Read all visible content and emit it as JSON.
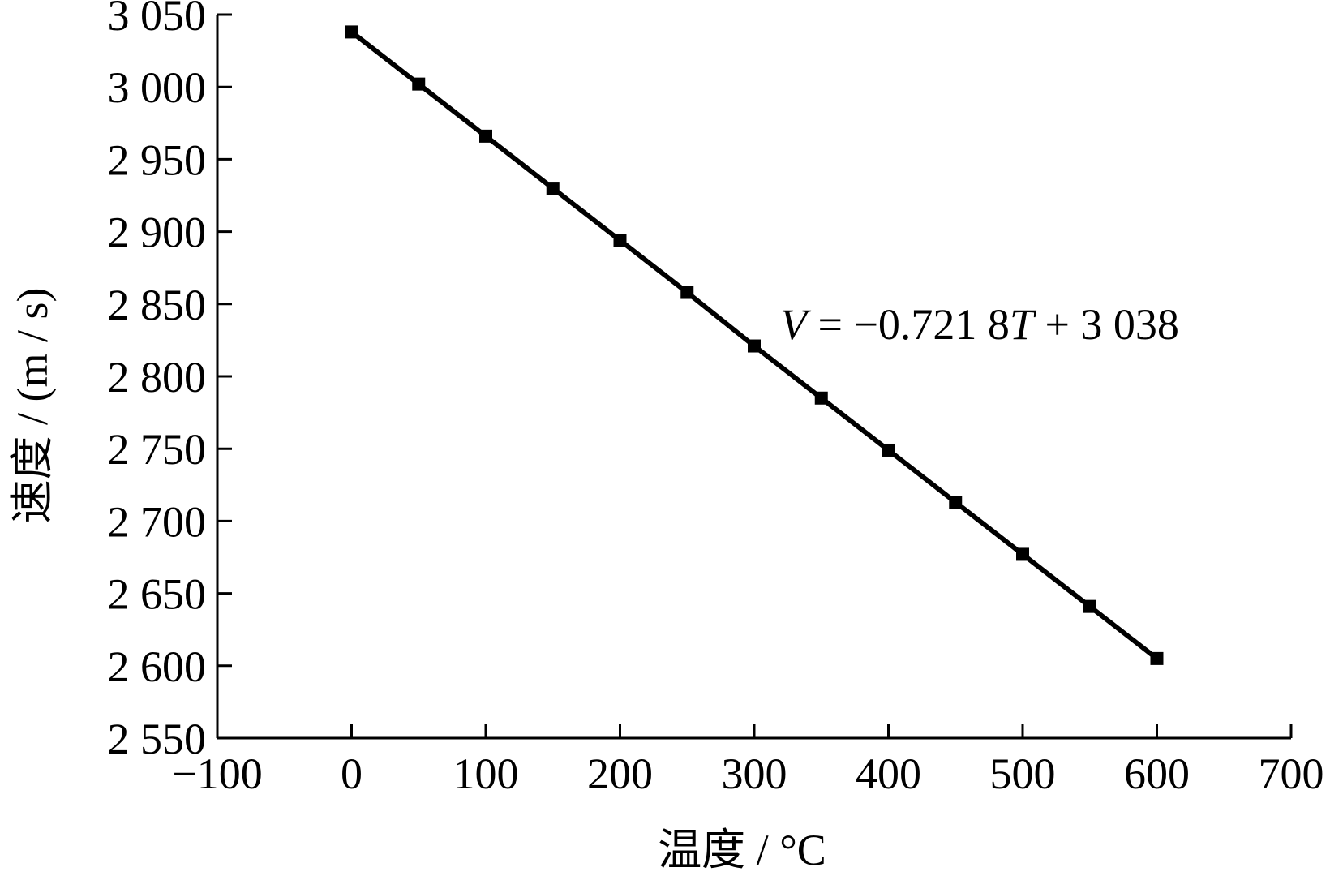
{
  "chart_data": {
    "type": "line",
    "title": "",
    "xlabel": "温度 / °C",
    "ylabel": "速度 / (m / s)",
    "xlim": [
      -100,
      700
    ],
    "ylim": [
      2550,
      3050
    ],
    "xticks": [
      -100,
      0,
      100,
      200,
      300,
      400,
      500,
      600,
      700
    ],
    "xtick_labels": [
      "−100",
      "0",
      "100",
      "200",
      "300",
      "400",
      "500",
      "600",
      "700"
    ],
    "yticks": [
      2550,
      2600,
      2650,
      2700,
      2750,
      2800,
      2850,
      2900,
      2950,
      3000,
      3050
    ],
    "ytick_labels": [
      "2 550",
      "2 600",
      "2 650",
      "2 700",
      "2 750",
      "2 800",
      "2 850",
      "2 900",
      "2 950",
      "3 000",
      "3 050"
    ],
    "grid": false,
    "marker": "square",
    "color": "#000000",
    "series": [
      {
        "x": [
          0,
          50,
          100,
          150,
          200,
          250,
          300,
          350,
          400,
          450,
          500,
          550,
          600
        ],
        "y": [
          3038,
          3002,
          2966,
          2930,
          2894,
          2858,
          2821,
          2785,
          2749,
          2713,
          2677,
          2641,
          2605
        ]
      }
    ],
    "annotation": {
      "parts": [
        {
          "text": "V",
          "italic": true
        },
        {
          "text": " = −0.721 8",
          "italic": false
        },
        {
          "text": "T",
          "italic": true
        },
        {
          "text": " + 3 038",
          "italic": false
        }
      ]
    }
  }
}
